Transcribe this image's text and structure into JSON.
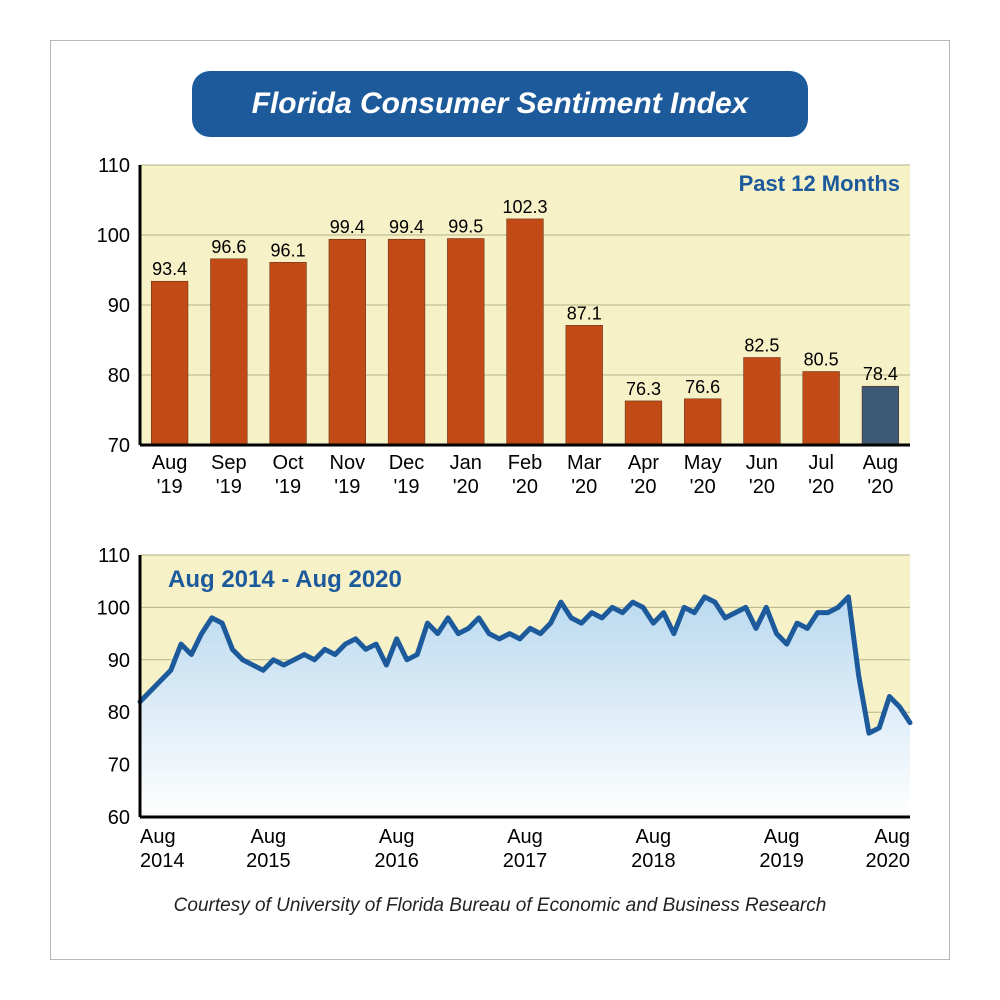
{
  "title": "Florida Consumer Sentiment Index",
  "credit": "Courtesy of University of Florida Bureau of Economic and Business Research",
  "colors": {
    "pill_bg": "#1c5a9c",
    "pill_text": "#ffffff",
    "plot_bg": "#f6f1c7",
    "axis": "#000000",
    "grid": "#b5b28a",
    "bar_main": "#c24a17",
    "bar_last": "#3e5975",
    "line_stroke": "#1c5a9c",
    "area_top": "#bad9ef",
    "area_bottom": "#ffffff",
    "label_blue": "#1c5a9c",
    "text": "#000000"
  },
  "bar_chart": {
    "type": "bar",
    "label": "Past 12 Months",
    "label_fontsize": 22,
    "ylim": [
      70,
      110
    ],
    "ytick_step": 10,
    "axis_fontsize": 20,
    "value_fontsize": 18,
    "cat_fontsize": 20,
    "categories": [
      "Aug '19",
      "Sep '19",
      "Oct '19",
      "Nov '19",
      "Dec '19",
      "Jan '20",
      "Feb '20",
      "Mar '20",
      "Apr '20",
      "May '20",
      "Jun '20",
      "Jul '20",
      "Aug '20"
    ],
    "values": [
      93.4,
      96.6,
      96.1,
      99.4,
      99.4,
      99.5,
      102.3,
      87.1,
      76.3,
      76.6,
      82.5,
      80.5,
      78.4
    ],
    "last_bar_highlight": true,
    "bar_width_ratio": 0.62
  },
  "line_chart": {
    "type": "area",
    "label": "Aug 2014 - Aug 2020",
    "label_fontsize": 24,
    "ylim": [
      60,
      110
    ],
    "ytick_step": 10,
    "axis_fontsize": 20,
    "x_labels": [
      "Aug 2014",
      "Aug 2015",
      "Aug 2016",
      "Aug 2017",
      "Aug 2018",
      "Aug 2019",
      "Aug 2020"
    ],
    "line_width": 5,
    "values": [
      82,
      84,
      86,
      88,
      93,
      91,
      95,
      98,
      97,
      92,
      90,
      89,
      88,
      90,
      89,
      90,
      91,
      90,
      92,
      91,
      93,
      94,
      92,
      93,
      89,
      94,
      90,
      91,
      97,
      95,
      98,
      95,
      96,
      98,
      95,
      94,
      95,
      94,
      96,
      95,
      97,
      101,
      98,
      97,
      99,
      98,
      100,
      99,
      101,
      100,
      97,
      99,
      95,
      100,
      99,
      102,
      101,
      98,
      99,
      100,
      96,
      100,
      95,
      93,
      97,
      96,
      99,
      99,
      100,
      102,
      87,
      76,
      77,
      83,
      81,
      78
    ]
  }
}
